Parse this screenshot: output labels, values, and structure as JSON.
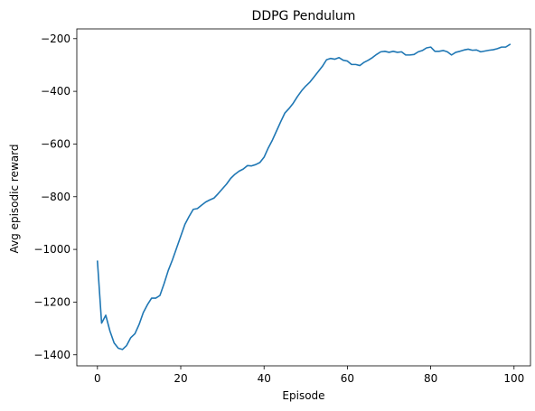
{
  "chart_data": {
    "type": "line",
    "title": "DDPG Pendulum",
    "xlabel": "Episode",
    "ylabel": "Avg episodic reward",
    "xlim": [
      -4.95,
      103.95
    ],
    "ylim": [
      -1442,
      -163
    ],
    "x_ticks": [
      0,
      20,
      40,
      60,
      80,
      100
    ],
    "y_ticks": [
      -1400,
      -1200,
      -1000,
      -800,
      -600,
      -400,
      -200
    ],
    "grid": false,
    "legend": "none",
    "series": [
      {
        "color": "#1f77b4",
        "x": [
          0,
          1,
          2,
          3,
          4,
          5,
          6,
          7,
          8,
          9,
          10,
          11,
          12,
          13,
          14,
          15,
          16,
          17,
          18,
          19,
          20,
          21,
          22,
          23,
          24,
          25,
          26,
          27,
          28,
          29,
          30,
          31,
          32,
          33,
          34,
          35,
          36,
          37,
          38,
          39,
          40,
          41,
          42,
          43,
          44,
          45,
          46,
          47,
          48,
          49,
          50,
          51,
          52,
          53,
          54,
          55,
          56,
          57,
          58,
          59,
          60,
          61,
          62,
          63,
          64,
          65,
          66,
          67,
          68,
          69,
          70,
          71,
          72,
          73,
          74,
          75,
          76,
          77,
          78,
          79,
          80,
          81,
          82,
          83,
          84,
          85,
          86,
          87,
          88,
          89,
          90,
          91,
          92,
          93,
          94,
          95,
          96,
          97,
          98,
          99
        ],
        "y": [
          -1045,
          -1280,
          -1250,
          -1310,
          -1355,
          -1375,
          -1380,
          -1365,
          -1335,
          -1320,
          -1285,
          -1240,
          -1210,
          -1185,
          -1185,
          -1175,
          -1130,
          -1080,
          -1040,
          -995,
          -950,
          -905,
          -875,
          -848,
          -845,
          -832,
          -820,
          -812,
          -805,
          -788,
          -770,
          -752,
          -730,
          -715,
          -703,
          -695,
          -682,
          -683,
          -678,
          -670,
          -650,
          -615,
          -585,
          -550,
          -515,
          -482,
          -465,
          -445,
          -420,
          -398,
          -380,
          -365,
          -345,
          -325,
          -305,
          -280,
          -275,
          -278,
          -272,
          -282,
          -285,
          -298,
          -298,
          -302,
          -290,
          -282,
          -272,
          -260,
          -250,
          -248,
          -252,
          -248,
          -252,
          -250,
          -262,
          -262,
          -260,
          -250,
          -245,
          -235,
          -232,
          -248,
          -248,
          -245,
          -250,
          -262,
          -252,
          -248,
          -243,
          -240,
          -244,
          -243,
          -250,
          -247,
          -244,
          -242,
          -238,
          -232,
          -232,
          -222
        ]
      }
    ]
  }
}
